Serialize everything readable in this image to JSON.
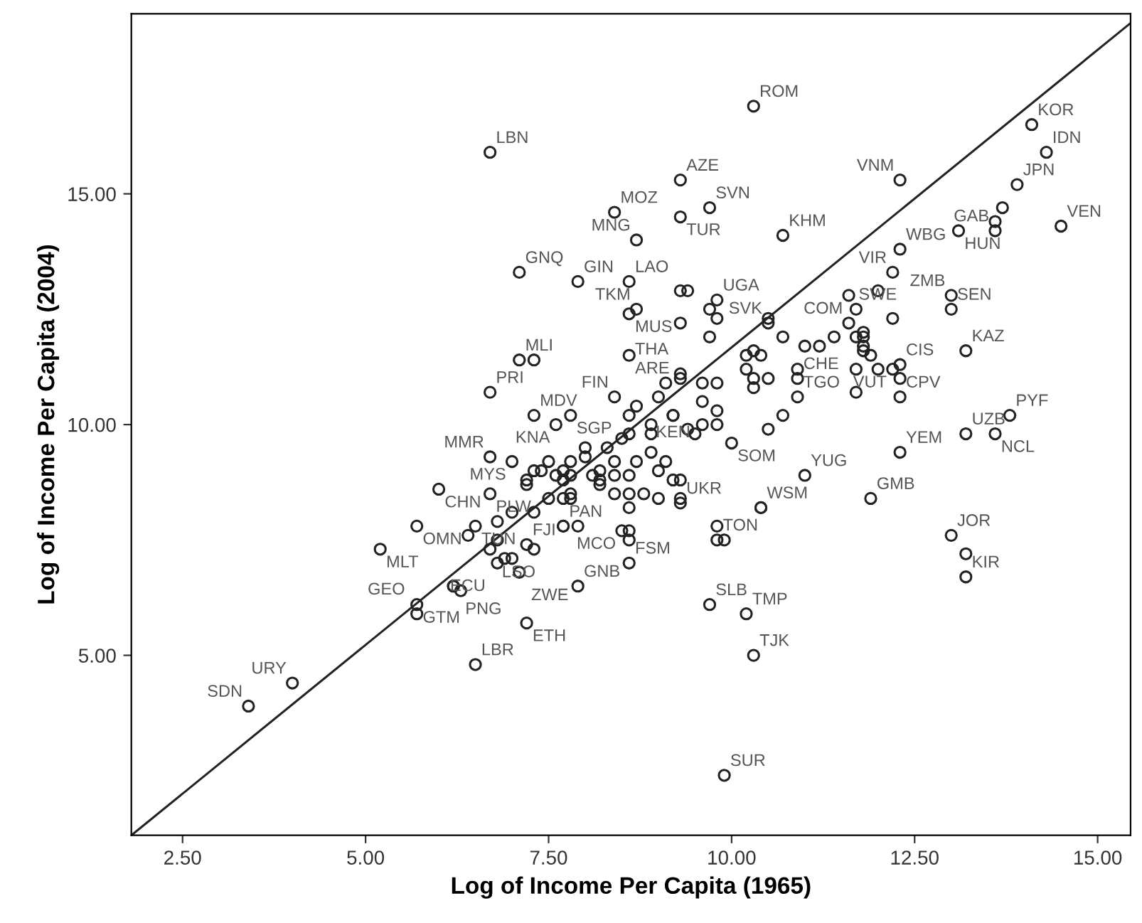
{
  "chart_data": {
    "type": "scatter",
    "xlabel": "Log of Income Per Capita (1965)",
    "ylabel": "Log of Income Per Capita (2004)",
    "xlim": [
      1.8,
      15.45
    ],
    "ylim": [
      1.1,
      18.9
    ],
    "xticks": [
      {
        "value": 2.5,
        "label": "2.50"
      },
      {
        "value": 5,
        "label": "5.00"
      },
      {
        "value": 7.5,
        "label": "7.50"
      },
      {
        "value": 10,
        "label": "10.00"
      },
      {
        "value": 12.5,
        "label": "12.50"
      },
      {
        "value": 15,
        "label": "15.00"
      }
    ],
    "yticks": [
      {
        "value": 5,
        "label": "5.00"
      },
      {
        "value": 10,
        "label": "10.00"
      },
      {
        "value": 15,
        "label": "15.00"
      }
    ],
    "grid": false,
    "legend": false,
    "marker": "circle",
    "series": [
      {
        "color": "#222222",
        "x": [
          6.7,
          8.4,
          7.1,
          7.9,
          8.6,
          8.7,
          8.6,
          8.6,
          7.1,
          6.7,
          7.3,
          8.4,
          7.8,
          7.6,
          6.7,
          7.0,
          6.0,
          6.7,
          5.7,
          6.5,
          5.2,
          6.7,
          7.2,
          7.7,
          6.8,
          7.1,
          7.9,
          5.7,
          5.7,
          6.2,
          7.2,
          6.5,
          4.0,
          3.4,
          8.6,
          8.5,
          9.3,
          10.4,
          9.8,
          10.0,
          11.0,
          12.3,
          11.9,
          13.0,
          13.2,
          13.6,
          13.2,
          13.8,
          12.3,
          10.9,
          10.9,
          12.3,
          12.2,
          13.2,
          13.0,
          13.0,
          11.6,
          11.6,
          10.5,
          12.2,
          12.3,
          13.1,
          13.6,
          12.3,
          13.9,
          14.1,
          14.3,
          14.5,
          10.7,
          10.3,
          9.3,
          9.7,
          9.3,
          8.7,
          9.8,
          9.3,
          9.2,
          10.2,
          10.3,
          9.9,
          9.7,
          7.3,
          13.6,
          13.7,
          6.3,
          7.3,
          7.0,
          6.4,
          7.2,
          7.6,
          9.8,
          13.2,
          10.5,
          10.7,
          10.9,
          12.3,
          12.0,
          11.7,
          11.8,
          10.7,
          11.0,
          11.2,
          11.4,
          10.3,
          12.0,
          12.2,
          11.7,
          11.8,
          11.8,
          11.8,
          11.9,
          11.7,
          9.7,
          9.7,
          9.3,
          9.4,
          11.7,
          9.3,
          9.8,
          10.5,
          10.2,
          10.4,
          10.2,
          10.3,
          10.3,
          10.5,
          9.1,
          9.3,
          9.6,
          9.8,
          8.7,
          9.0,
          8.6,
          8.9,
          9.2,
          9.4,
          9.6,
          9.8,
          9.6,
          9.8,
          9.5,
          8.3,
          8.5,
          8.6,
          8.9,
          8.9,
          9.1,
          8.7,
          8.4,
          8.2,
          8.0,
          7.8,
          7.7,
          7.7,
          7.8,
          8.1,
          8.2,
          8.4,
          8.6,
          9.0,
          9.2,
          9.3,
          8.8,
          8.6,
          8.4,
          8.2,
          7.8,
          7.7,
          7.5,
          7.4,
          7.8,
          9.0,
          9.3,
          8.6,
          8.0,
          7.5,
          7.3,
          7.2,
          7.0,
          7.3,
          6.8,
          6.8,
          6.9,
          6.2,
          7.7,
          7.9,
          8.6,
          8.6,
          9.9,
          10.4
        ],
        "values": [
          15.9,
          14.6,
          13.3,
          13.1,
          13.1,
          12.5,
          12.4,
          11.5,
          11.4,
          10.7,
          10.2,
          10.6,
          10.2,
          10.0,
          9.3,
          9.2,
          8.6,
          8.5,
          7.8,
          7.8,
          7.3,
          7.3,
          7.4,
          7.8,
          7.0,
          6.8,
          6.5,
          6.1,
          5.9,
          6.5,
          5.7,
          4.8,
          4.4,
          3.9,
          7.0,
          7.7,
          8.3,
          8.2,
          7.5,
          9.6,
          8.9,
          9.4,
          8.4,
          7.6,
          6.7,
          9.8,
          9.8,
          10.2,
          10.6,
          10.6,
          11.0,
          11.3,
          11.2,
          11.6,
          12.5,
          12.8,
          12.2,
          12.8,
          12.2,
          13.3,
          13.8,
          14.2,
          14.2,
          15.3,
          15.2,
          16.5,
          15.9,
          14.3,
          14.1,
          16.9,
          15.3,
          14.7,
          14.5,
          14.0,
          12.7,
          11.1,
          10.2,
          5.9,
          5.0,
          2.4,
          6.1,
          11.4,
          14.4,
          14.7,
          6.4,
          7.3,
          7.1,
          7.6,
          8.7,
          8.9,
          7.8,
          7.2,
          9.9,
          10.2,
          11.2,
          11.0,
          11.2,
          11.2,
          11.6,
          11.9,
          11.7,
          11.7,
          11.9,
          11.6,
          12.9,
          12.3,
          11.9,
          12.0,
          11.9,
          11.7,
          11.5,
          12.5,
          12.5,
          11.9,
          12.2,
          12.9,
          10.7,
          12.9,
          12.3,
          12.3,
          11.5,
          11.5,
          11.2,
          11.0,
          10.8,
          11.0,
          10.9,
          11.0,
          10.9,
          10.9,
          10.4,
          10.6,
          10.2,
          10.0,
          10.2,
          9.9,
          10.0,
          10.3,
          10.5,
          10.0,
          9.8,
          9.5,
          9.7,
          9.8,
          9.8,
          9.4,
          9.2,
          9.2,
          9.2,
          9.0,
          9.3,
          9.2,
          9.0,
          8.8,
          8.9,
          8.9,
          8.8,
          8.9,
          8.9,
          9.0,
          8.8,
          8.8,
          8.5,
          8.5,
          8.5,
          8.7,
          8.5,
          8.4,
          8.4,
          9.0,
          8.4,
          8.4,
          8.4,
          8.2,
          9.5,
          9.2,
          9.0,
          8.8,
          8.1,
          8.1,
          7.9,
          7.5,
          7.1,
          6.5,
          7.8,
          7.8,
          7.7,
          7.5,
          7.5,
          8.2
        ]
      },
      {
        "type": "line",
        "color": "#222222",
        "marker": "none",
        "x": [
          1.8,
          15.45
        ],
        "values": [
          1.1,
          18.7
        ]
      }
    ],
    "annotations": [
      {
        "text": "LBN",
        "x": 6.7,
        "y": 15.9
      },
      {
        "text": "MOZ",
        "x": 8.4,
        "y": 14.6
      },
      {
        "text": "GNQ",
        "x": 7.1,
        "y": 13.3
      },
      {
        "text": "GIN",
        "x": 7.9,
        "y": 13.1
      },
      {
        "text": "LAO",
        "x": 8.6,
        "y": 13.1
      },
      {
        "text": "TKM",
        "x": 8.7,
        "y": 12.5
      },
      {
        "text": "MUS",
        "x": 8.6,
        "y": 12.4
      },
      {
        "text": "ARE",
        "x": 8.6,
        "y": 11.5
      },
      {
        "text": "MLI",
        "x": 7.1,
        "y": 11.4
      },
      {
        "text": "PRI",
        "x": 6.7,
        "y": 10.7
      },
      {
        "text": "MDV",
        "x": 7.3,
        "y": 10.2
      },
      {
        "text": "FIN",
        "x": 8.4,
        "y": 10.6
      },
      {
        "text": "SGP",
        "x": 7.8,
        "y": 10.2
      },
      {
        "text": "KNA",
        "x": 7.6,
        "y": 10.0
      },
      {
        "text": "MMR",
        "x": 6.7,
        "y": 9.3
      },
      {
        "text": "MYS",
        "x": 7.0,
        "y": 9.2
      },
      {
        "text": "CHN",
        "x": 6.0,
        "y": 8.6
      },
      {
        "text": "PLW",
        "x": 6.7,
        "y": 8.5
      },
      {
        "text": "OMN",
        "x": 5.7,
        "y": 7.8
      },
      {
        "text": "TUN",
        "x": 6.5,
        "y": 7.8
      },
      {
        "text": "MLT",
        "x": 5.2,
        "y": 7.3
      },
      {
        "text": "LSO",
        "x": 6.7,
        "y": 7.3
      },
      {
        "text": "FJI",
        "x": 7.2,
        "y": 7.4
      },
      {
        "text": "PAN",
        "x": 7.7,
        "y": 7.8
      },
      {
        "text": "ECU",
        "x": 6.8,
        "y": 7.0
      },
      {
        "text": "ZWE",
        "x": 7.1,
        "y": 6.8
      },
      {
        "text": "GNB",
        "x": 7.9,
        "y": 6.5
      },
      {
        "text": "GTM",
        "x": 5.7,
        "y": 6.1
      },
      {
        "text": "GEO",
        "x": 5.7,
        "y": 5.9
      },
      {
        "text": "PNG",
        "x": 6.2,
        "y": 6.5
      },
      {
        "text": "ETH",
        "x": 7.2,
        "y": 5.7
      },
      {
        "text": "LBR",
        "x": 6.5,
        "y": 4.8
      },
      {
        "text": "URY",
        "x": 4.0,
        "y": 4.4
      },
      {
        "text": "SDN",
        "x": 3.4,
        "y": 3.9
      },
      {
        "text": "FSM",
        "x": 8.6,
        "y": 7.0
      },
      {
        "text": "MCO",
        "x": 8.5,
        "y": 7.7
      },
      {
        "text": "UKR",
        "x": 9.3,
        "y": 8.3
      },
      {
        "text": "WSM",
        "x": 10.4,
        "y": 8.2
      },
      {
        "text": "TON",
        "x": 9.8,
        "y": 7.5
      },
      {
        "text": "SOM",
        "x": 10.0,
        "y": 9.6
      },
      {
        "text": "YUG",
        "x": 11.0,
        "y": 8.9
      },
      {
        "text": "YEM",
        "x": 12.3,
        "y": 9.4
      },
      {
        "text": "GMB",
        "x": 11.9,
        "y": 8.4
      },
      {
        "text": "JOR",
        "x": 13.0,
        "y": 7.6
      },
      {
        "text": "KIR",
        "x": 13.2,
        "y": 6.7
      },
      {
        "text": "NCL",
        "x": 13.6,
        "y": 9.8
      },
      {
        "text": "UZB",
        "x": 13.2,
        "y": 9.8
      },
      {
        "text": "PYF",
        "x": 13.8,
        "y": 10.2
      },
      {
        "text": "CPV",
        "x": 12.3,
        "y": 10.6
      },
      {
        "text": "TGO",
        "x": 10.9,
        "y": 10.6
      },
      {
        "text": "CHE",
        "x": 10.9,
        "y": 11.0
      },
      {
        "text": "CIS",
        "x": 12.3,
        "y": 11.3
      },
      {
        "text": "VUT",
        "x": 12.2,
        "y": 11.2
      },
      {
        "text": "KAZ",
        "x": 13.2,
        "y": 11.6
      },
      {
        "text": "SEN",
        "x": 13.0,
        "y": 12.5
      },
      {
        "text": "ZMB",
        "x": 13.0,
        "y": 12.8
      },
      {
        "text": "COM",
        "x": 11.6,
        "y": 12.2
      },
      {
        "text": "SWE",
        "x": 11.6,
        "y": 12.8
      },
      {
        "text": "SVK",
        "x": 10.5,
        "y": 12.2
      },
      {
        "text": "VIR",
        "x": 12.2,
        "y": 13.3
      },
      {
        "text": "WBG",
        "x": 12.3,
        "y": 13.8
      },
      {
        "text": "HUN",
        "x": 13.1,
        "y": 14.2
      },
      {
        "text": "GAB",
        "x": 13.6,
        "y": 14.2
      },
      {
        "text": "VNM",
        "x": 12.3,
        "y": 15.3
      },
      {
        "text": "JPN",
        "x": 13.9,
        "y": 15.2
      },
      {
        "text": "KOR",
        "x": 14.1,
        "y": 16.5
      },
      {
        "text": "IDN",
        "x": 14.3,
        "y": 15.9
      },
      {
        "text": "VEN",
        "x": 14.5,
        "y": 14.3
      },
      {
        "text": "KHM",
        "x": 10.7,
        "y": 14.1
      },
      {
        "text": "ROM",
        "x": 10.3,
        "y": 16.9
      },
      {
        "text": "AZE",
        "x": 9.3,
        "y": 15.3
      },
      {
        "text": "SVN",
        "x": 9.7,
        "y": 14.7
      },
      {
        "text": "TUR",
        "x": 9.3,
        "y": 14.5
      },
      {
        "text": "MNG",
        "x": 8.7,
        "y": 14.0
      },
      {
        "text": "UGA",
        "x": 9.8,
        "y": 12.7
      },
      {
        "text": "THA",
        "x": 9.3,
        "y": 11.1
      },
      {
        "text": "KEN",
        "x": 9.2,
        "y": 10.2
      },
      {
        "text": "TMP",
        "x": 10.2,
        "y": 5.9
      },
      {
        "text": "TJK",
        "x": 10.3,
        "y": 5.0
      },
      {
        "text": "SUR",
        "x": 9.9,
        "y": 2.4
      },
      {
        "text": "SLB",
        "x": 9.7,
        "y": 6.1
      }
    ]
  }
}
